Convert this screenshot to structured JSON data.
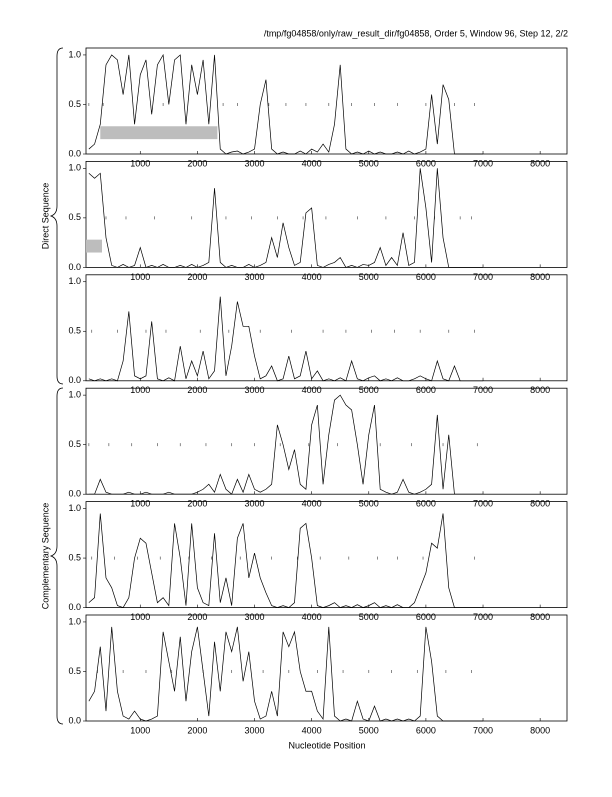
{
  "header": "/tmp/fg04858/only/raw_result_dir/fg04858, Order 5, Window 96, Step 12, 2/2",
  "x_label": "Nucleotide Position",
  "groups": [
    "Direct Sequence",
    "Complementary Sequence"
  ],
  "chart_data": [
    {
      "type": "line",
      "color": "#000000",
      "x": [
        100,
        200,
        300,
        400,
        500,
        600,
        700,
        800,
        900,
        1000,
        1100,
        1200,
        1300,
        1400,
        1500,
        1600,
        1700,
        1800,
        1900,
        2000,
        2100,
        2200,
        2300,
        2400,
        2500,
        2600,
        2700,
        2800,
        2900,
        3000,
        3100,
        3200,
        3300,
        3400,
        3500,
        3600,
        3700,
        3800,
        3900,
        4000,
        4100,
        4200,
        4300,
        4400,
        4500,
        4600,
        4700,
        4800,
        4900,
        5000,
        5100,
        5200,
        5300,
        5400,
        5500,
        5600,
        5700,
        5800,
        5900,
        6000,
        6100,
        6200,
        6300,
        6400,
        6500,
        6600,
        6700,
        6800,
        6900,
        7000
      ],
      "values": [
        0.05,
        0.1,
        0.3,
        0.9,
        1.0,
        0.95,
        0.6,
        1.0,
        0.3,
        0.8,
        0.95,
        0.4,
        0.9,
        1.0,
        0.5,
        0.95,
        1.0,
        0.3,
        0.9,
        0.6,
        0.95,
        0.3,
        1.0,
        0.05,
        0,
        0.02,
        0.03,
        0,
        0.02,
        0.05,
        0.5,
        0.75,
        0.05,
        0,
        0.02,
        0,
        0,
        0.03,
        0,
        0.05,
        0.02,
        0.1,
        0.02,
        0.3,
        0.9,
        0.05,
        0,
        0.02,
        0,
        0.03,
        0,
        0.02,
        0,
        0,
        0.02,
        0,
        0.03,
        0,
        0.02,
        0.05,
        0.6,
        0.1,
        0.7,
        0.55,
        0,
        0,
        0,
        0,
        0,
        0
      ],
      "markers": [
        100,
        350,
        1400,
        2450,
        2700,
        3250,
        3550,
        3900,
        4300,
        4700,
        5100,
        5500,
        6000,
        6500,
        6850
      ],
      "regions": [
        {
          "start": 300,
          "end": 2350,
          "low": 0.15,
          "high": 0.28
        }
      ],
      "xlim": [
        50,
        8470
      ],
      "ylim": [
        0,
        1.07
      ],
      "xticks": [
        1000,
        2000,
        3000,
        4000,
        5000,
        6000,
        7000,
        8000
      ],
      "yticks": [
        {
          "value": 0,
          "label": "0.0"
        },
        {
          "value": 0.5,
          "label": "0.5"
        },
        {
          "value": 1,
          "label": "1.0"
        }
      ]
    },
    {
      "type": "line",
      "color": "#000000",
      "x": [
        100,
        200,
        300,
        400,
        500,
        600,
        700,
        800,
        900,
        1000,
        1100,
        1200,
        1300,
        1400,
        1500,
        1600,
        1700,
        1800,
        1900,
        2000,
        2100,
        2200,
        2300,
        2400,
        2500,
        2600,
        2700,
        2800,
        2900,
        3000,
        3100,
        3200,
        3300,
        3400,
        3500,
        3600,
        3700,
        3800,
        3900,
        4000,
        4100,
        4200,
        4300,
        4400,
        4500,
        4600,
        4700,
        4800,
        4900,
        5000,
        5100,
        5200,
        5300,
        5400,
        5500,
        5600,
        5700,
        5800,
        5900,
        6000,
        6100,
        6200,
        6300,
        6400,
        6500,
        6600,
        6700,
        6800,
        6900,
        7000
      ],
      "values": [
        0.95,
        0.9,
        0.95,
        0.3,
        0.02,
        0,
        0.03,
        0,
        0.02,
        0.2,
        0,
        0.02,
        0,
        0.03,
        0,
        0,
        0.02,
        0,
        0.03,
        0,
        0.02,
        0.05,
        0.8,
        0.05,
        0,
        0.02,
        0,
        0,
        0.03,
        0,
        0.02,
        0.05,
        0.3,
        0.1,
        0.45,
        0.2,
        0.02,
        0.05,
        0.55,
        0.6,
        0.02,
        0,
        0.03,
        0.05,
        0.1,
        0,
        0.02,
        0,
        0.03,
        0.02,
        0.05,
        0.2,
        0.02,
        0.1,
        0.02,
        0.35,
        0.02,
        0.05,
        1.0,
        0.6,
        0.05,
        1.0,
        0.3,
        0,
        0,
        0,
        0,
        0,
        0,
        0
      ],
      "markers": [
        400,
        750,
        1250,
        1900,
        2500,
        2950,
        3400,
        3850,
        4250,
        4800,
        5300,
        5800,
        6150,
        6600,
        6800
      ],
      "regions": [
        {
          "start": 50,
          "end": 330,
          "low": 0.15,
          "high": 0.28
        }
      ],
      "xlim": [
        50,
        8470
      ],
      "ylim": [
        0,
        1.07
      ],
      "xticks": [
        1000,
        2000,
        3000,
        4000,
        5000,
        6000,
        7000,
        8000
      ],
      "yticks": [
        {
          "value": 0,
          "label": "0.0"
        },
        {
          "value": 0.5,
          "label": "0.5"
        },
        {
          "value": 1,
          "label": "1.0"
        }
      ]
    },
    {
      "type": "line",
      "color": "#000000",
      "x": [
        100,
        200,
        300,
        400,
        500,
        600,
        700,
        800,
        900,
        1000,
        1100,
        1200,
        1300,
        1400,
        1500,
        1600,
        1700,
        1800,
        1900,
        2000,
        2100,
        2200,
        2300,
        2400,
        2500,
        2600,
        2700,
        2800,
        2900,
        3000,
        3100,
        3200,
        3300,
        3400,
        3500,
        3600,
        3700,
        3800,
        3900,
        4000,
        4100,
        4200,
        4300,
        4400,
        4500,
        4600,
        4700,
        4800,
        4900,
        5000,
        5100,
        5200,
        5300,
        5400,
        5500,
        5600,
        5700,
        5800,
        5900,
        6000,
        6100,
        6200,
        6300,
        6400,
        6500,
        6600,
        6700,
        6800,
        6900,
        7000
      ],
      "values": [
        0.02,
        0,
        0.02,
        0,
        0.02,
        0,
        0.2,
        0.7,
        0.05,
        0.02,
        0.05,
        0.6,
        0.02,
        0,
        0.03,
        0,
        0.35,
        0.02,
        0.2,
        0.05,
        0.3,
        0.02,
        0.1,
        0.85,
        0.05,
        0.35,
        0.8,
        0.55,
        0.55,
        0.25,
        0.02,
        0.05,
        0.15,
        0,
        0.02,
        0.25,
        0.02,
        0.05,
        0.3,
        0.02,
        0.1,
        0,
        0.02,
        0,
        0.03,
        0,
        0.2,
        0.02,
        0,
        0.03,
        0.05,
        0,
        0.02,
        0,
        0.03,
        0,
        0,
        0.02,
        0.05,
        0.02,
        0,
        0.2,
        0.02,
        0,
        0.15,
        0,
        0,
        0,
        0,
        0
      ],
      "markers": [
        150,
        600,
        1100,
        1450,
        2050,
        2550,
        3100,
        3650,
        4200,
        4600,
        5050,
        5450,
        5900,
        6400,
        6850
      ],
      "regions": [],
      "xlim": [
        50,
        8470
      ],
      "ylim": [
        0,
        1.07
      ],
      "xticks": [
        1000,
        2000,
        3000,
        4000,
        5000,
        6000,
        7000,
        8000
      ],
      "yticks": [
        {
          "value": 0,
          "label": "0.0"
        },
        {
          "value": 0.5,
          "label": "0.5"
        },
        {
          "value": 1,
          "label": "1.0"
        }
      ]
    },
    {
      "type": "line",
      "color": "#000000",
      "x": [
        100,
        200,
        300,
        400,
        500,
        600,
        700,
        800,
        900,
        1000,
        1100,
        1200,
        1300,
        1400,
        1500,
        1600,
        1700,
        1800,
        1900,
        2000,
        2100,
        2200,
        2300,
        2400,
        2500,
        2600,
        2700,
        2800,
        2900,
        3000,
        3100,
        3200,
        3300,
        3400,
        3500,
        3600,
        3700,
        3800,
        3900,
        4000,
        4100,
        4200,
        4300,
        4400,
        4500,
        4600,
        4700,
        4800,
        4900,
        5000,
        5100,
        5200,
        5300,
        5400,
        5500,
        5600,
        5700,
        5800,
        5900,
        6000,
        6100,
        6200,
        6300,
        6400,
        6500,
        6600,
        6700,
        6800,
        6900,
        7000
      ],
      "values": [
        0,
        0,
        0.15,
        0.02,
        0,
        0,
        0,
        0.02,
        0,
        0,
        0.02,
        0,
        0,
        0,
        0.02,
        0,
        0,
        0,
        0,
        0.02,
        0.05,
        0.1,
        0.02,
        0.2,
        0.05,
        0,
        0.15,
        0.02,
        0.2,
        0.05,
        0.02,
        0.05,
        0.1,
        0.7,
        0.5,
        0.25,
        0.45,
        0.1,
        0.05,
        0.7,
        0.9,
        0.1,
        0.6,
        0.95,
        1.0,
        0.9,
        0.85,
        0.5,
        0.1,
        0.6,
        0.9,
        0.05,
        0.02,
        0,
        0.02,
        0.15,
        0.02,
        0,
        0.02,
        0.05,
        0.1,
        0.8,
        0.05,
        0.6,
        0,
        0,
        0,
        0,
        0,
        0
      ],
      "markers": [
        100,
        450,
        850,
        1300,
        1700,
        2150,
        2600,
        3000,
        3450,
        3950,
        4450,
        5200,
        5750,
        6300,
        6900
      ],
      "regions": [],
      "xlim": [
        50,
        8470
      ],
      "ylim": [
        0,
        1.07
      ],
      "xticks": [
        1000,
        2000,
        3000,
        4000,
        5000,
        6000,
        7000,
        8000
      ],
      "yticks": [
        {
          "value": 0,
          "label": "0.0"
        },
        {
          "value": 0.5,
          "label": "0.5"
        },
        {
          "value": 1,
          "label": "1.0"
        }
      ]
    },
    {
      "type": "line",
      "color": "#000000",
      "x": [
        100,
        200,
        300,
        400,
        500,
        600,
        700,
        800,
        900,
        1000,
        1100,
        1200,
        1300,
        1400,
        1500,
        1600,
        1700,
        1800,
        1900,
        2000,
        2100,
        2200,
        2300,
        2400,
        2500,
        2600,
        2700,
        2800,
        2900,
        3000,
        3100,
        3200,
        3300,
        3400,
        3500,
        3600,
        3700,
        3800,
        3900,
        4000,
        4100,
        4200,
        4300,
        4400,
        4500,
        4600,
        4700,
        4800,
        4900,
        5000,
        5100,
        5200,
        5300,
        5400,
        5500,
        5600,
        5700,
        5800,
        5900,
        6000,
        6100,
        6200,
        6300,
        6400,
        6500,
        6600,
        6700,
        6800,
        6900,
        7000
      ],
      "values": [
        0.05,
        0.1,
        0.95,
        0.3,
        0.2,
        0.02,
        0,
        0.1,
        0.5,
        0.7,
        0.65,
        0.35,
        0.05,
        0.1,
        0.02,
        0.85,
        0.5,
        0.02,
        0.85,
        0.2,
        0.05,
        0.02,
        0.75,
        0.05,
        0.3,
        0.02,
        0.7,
        0.85,
        0.3,
        0.55,
        0.3,
        0.15,
        0.02,
        0,
        0.02,
        0,
        0.05,
        0.8,
        0.85,
        0.5,
        0.02,
        0,
        0.02,
        0.05,
        0,
        0.02,
        0,
        0.03,
        0,
        0.02,
        0.05,
        0,
        0.02,
        0,
        0.03,
        0,
        0,
        0.05,
        0.2,
        0.35,
        0.65,
        0.6,
        0.95,
        0.2,
        0,
        0,
        0,
        0,
        0,
        0
      ],
      "markers": [
        150,
        550,
        950,
        1350,
        1850,
        2250,
        2750,
        3300,
        3750,
        4150,
        4650,
        5150,
        5500,
        5950,
        6850
      ],
      "regions": [],
      "xlim": [
        50,
        8470
      ],
      "ylim": [
        0,
        1.07
      ],
      "xticks": [
        1000,
        2000,
        3000,
        4000,
        5000,
        6000,
        7000,
        8000
      ],
      "yticks": [
        {
          "value": 0,
          "label": "0.0"
        },
        {
          "value": 0.5,
          "label": "0.5"
        },
        {
          "value": 1,
          "label": "1.0"
        }
      ]
    },
    {
      "type": "line",
      "color": "#000000",
      "x": [
        100,
        200,
        300,
        400,
        500,
        600,
        700,
        800,
        900,
        1000,
        1100,
        1200,
        1300,
        1400,
        1500,
        1600,
        1700,
        1800,
        1900,
        2000,
        2100,
        2200,
        2300,
        2400,
        2500,
        2600,
        2700,
        2800,
        2900,
        3000,
        3100,
        3200,
        3300,
        3400,
        3500,
        3600,
        3700,
        3800,
        3900,
        4000,
        4100,
        4200,
        4300,
        4400,
        4500,
        4600,
        4700,
        4800,
        4900,
        5000,
        5100,
        5200,
        5300,
        5400,
        5500,
        5600,
        5700,
        5800,
        5900,
        6000,
        6100,
        6200,
        6300,
        6400,
        6500,
        6600,
        6700,
        6800,
        6900,
        7000
      ],
      "values": [
        0.2,
        0.3,
        0.75,
        0.1,
        0.95,
        0.3,
        0.05,
        0.02,
        0.1,
        0.02,
        0,
        0.02,
        0.05,
        0.9,
        0.6,
        0.3,
        0.85,
        0.2,
        0.7,
        0.95,
        0.5,
        0.05,
        0.8,
        0.3,
        0.9,
        0.7,
        0.95,
        0.4,
        0.7,
        0.2,
        0.02,
        0.05,
        0.3,
        0.05,
        0.9,
        0.75,
        0.9,
        0.5,
        0.3,
        0.3,
        0.1,
        0.02,
        0.95,
        0.05,
        0,
        0.02,
        0,
        0.2,
        0.02,
        0,
        0.15,
        0,
        0.02,
        0,
        0.02,
        0,
        0.02,
        0,
        0.05,
        0.95,
        0.6,
        0.05,
        0,
        0,
        0,
        0,
        0,
        0,
        0,
        0
      ],
      "markers": [
        250,
        700,
        1100,
        1550,
        2100,
        2600,
        3150,
        3600,
        4100,
        4550,
        5000,
        5400,
        5850,
        6350,
        6800
      ],
      "regions": [],
      "xlim": [
        50,
        8470
      ],
      "ylim": [
        0,
        1.07
      ],
      "xticks": [
        1000,
        2000,
        3000,
        4000,
        5000,
        6000,
        7000,
        8000
      ],
      "yticks": [
        {
          "value": 0,
          "label": "0.0"
        },
        {
          "value": 0.5,
          "label": "0.5"
        },
        {
          "value": 1,
          "label": "1.0"
        }
      ]
    }
  ]
}
